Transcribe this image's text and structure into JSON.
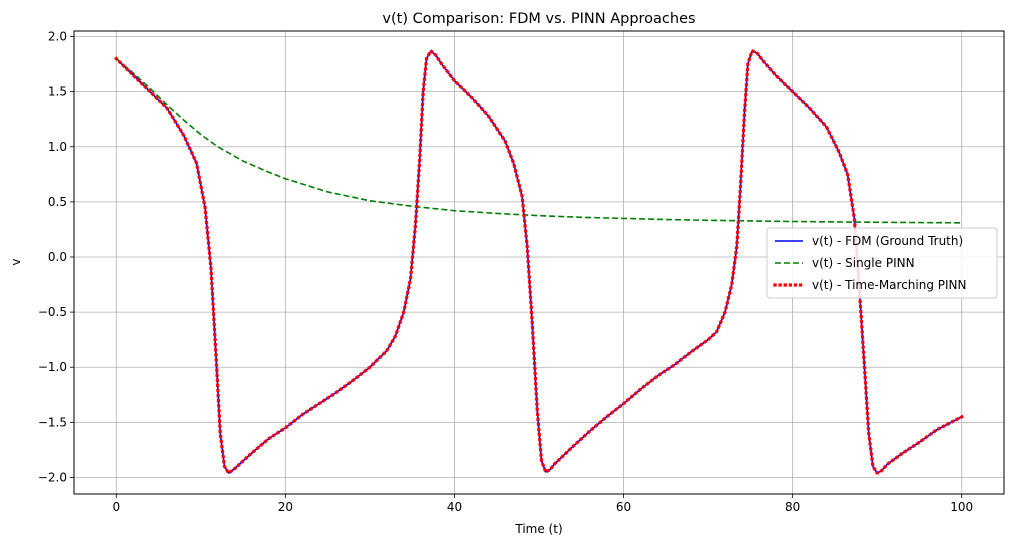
{
  "chart_data": {
    "type": "line",
    "title": "v(t) Comparison: FDM vs. PINN Approaches",
    "xlabel": "Time (t)",
    "ylabel": "v",
    "xlim": [
      -5,
      105
    ],
    "ylim": [
      -2.15,
      2.05
    ],
    "xticks": [
      0,
      20,
      40,
      60,
      80,
      100
    ],
    "xtick_labels": [
      "0",
      "20",
      "40",
      "60",
      "80",
      "100"
    ],
    "yticks": [
      -2.0,
      -1.5,
      -1.0,
      -0.5,
      0.0,
      0.5,
      1.0,
      1.5,
      2.0
    ],
    "ytick_labels": [
      "−2.0",
      "−1.5",
      "−1.0",
      "−0.5",
      "0.0",
      "0.5",
      "1.0",
      "1.5",
      "2.0"
    ],
    "grid": true,
    "legend_position": "center-right",
    "series": [
      {
        "name": "v(t) - FDM (Ground Truth)",
        "color": "#0000ff",
        "style": "solid",
        "x": [
          0,
          2,
          4,
          6,
          8,
          9.5,
          10.5,
          11.2,
          11.8,
          12.3,
          12.8,
          13.3,
          14,
          16,
          18,
          20,
          22,
          24,
          26,
          28,
          30,
          32,
          33,
          34,
          34.8,
          35.4,
          35.9,
          36.3,
          36.7,
          37.2,
          37.8,
          38.5,
          40,
          42,
          44,
          46,
          47,
          48,
          48.6,
          49.2,
          49.8,
          50.3,
          50.8,
          51.3,
          51.8,
          52.5,
          54,
          56,
          58,
          60,
          62,
          64,
          66,
          68,
          70,
          71,
          72,
          72.8,
          73.4,
          73.8,
          74.3,
          74.7,
          75.2,
          75.8,
          76.5,
          78,
          80,
          82,
          84,
          85.5,
          86.5,
          87.3,
          87.9,
          88.5,
          89,
          89.5,
          90,
          90.5,
          91.2,
          93,
          95,
          97,
          100
        ],
        "y": [
          1.8,
          1.65,
          1.5,
          1.35,
          1.1,
          0.85,
          0.45,
          -0.1,
          -0.9,
          -1.6,
          -1.9,
          -1.96,
          -1.92,
          -1.78,
          -1.65,
          -1.55,
          -1.43,
          -1.33,
          -1.23,
          -1.12,
          -1.0,
          -0.85,
          -0.72,
          -0.5,
          -0.2,
          0.3,
          0.9,
          1.5,
          1.8,
          1.87,
          1.83,
          1.75,
          1.6,
          1.45,
          1.28,
          1.05,
          0.85,
          0.55,
          0.1,
          -0.6,
          -1.4,
          -1.85,
          -1.95,
          -1.93,
          -1.88,
          -1.83,
          -1.72,
          -1.58,
          -1.45,
          -1.33,
          -1.2,
          -1.08,
          -0.98,
          -0.86,
          -0.75,
          -0.68,
          -0.5,
          -0.25,
          0.1,
          0.6,
          1.3,
          1.75,
          1.87,
          1.85,
          1.78,
          1.65,
          1.5,
          1.35,
          1.18,
          0.95,
          0.75,
          0.35,
          -0.3,
          -1.0,
          -1.6,
          -1.9,
          -1.96,
          -1.94,
          -1.88,
          -1.78,
          -1.68,
          -1.57,
          -1.45
        ]
      },
      {
        "name": "v(t) - Single PINN",
        "color": "#008000",
        "style": "dashed",
        "x": [
          0,
          2,
          4,
          6,
          8,
          10,
          12,
          15,
          18,
          20,
          25,
          30,
          35,
          40,
          45,
          50,
          55,
          60,
          65,
          70,
          75,
          80,
          85,
          90,
          95,
          100
        ],
        "y": [
          1.8,
          1.67,
          1.53,
          1.38,
          1.24,
          1.11,
          1.0,
          0.87,
          0.77,
          0.71,
          0.59,
          0.51,
          0.46,
          0.42,
          0.395,
          0.375,
          0.36,
          0.35,
          0.34,
          0.333,
          0.327,
          0.322,
          0.318,
          0.315,
          0.312,
          0.31
        ]
      },
      {
        "name": "v(t) - Time-Marching PINN",
        "color": "#ff0000",
        "style": "dotted",
        "x": [
          0,
          2,
          4,
          6,
          8,
          9.5,
          10.5,
          11.2,
          11.8,
          12.3,
          12.8,
          13.3,
          14,
          16,
          18,
          20,
          22,
          24,
          26,
          28,
          30,
          32,
          33,
          34,
          34.8,
          35.4,
          35.9,
          36.3,
          36.7,
          37.2,
          37.8,
          38.5,
          40,
          42,
          44,
          46,
          47,
          48,
          48.6,
          49.2,
          49.8,
          50.3,
          50.8,
          51.3,
          51.8,
          52.5,
          54,
          56,
          58,
          60,
          62,
          64,
          66,
          68,
          70,
          71,
          72,
          72.8,
          73.4,
          73.8,
          74.3,
          74.7,
          75.2,
          75.8,
          76.5,
          78,
          80,
          82,
          84,
          85.5,
          86.5,
          87.3,
          87.9,
          88.5,
          89,
          89.5,
          90,
          90.5,
          91.2,
          93,
          95,
          97,
          100
        ],
        "y": [
          1.8,
          1.65,
          1.5,
          1.35,
          1.1,
          0.85,
          0.45,
          -0.1,
          -0.9,
          -1.6,
          -1.9,
          -1.96,
          -1.92,
          -1.78,
          -1.65,
          -1.55,
          -1.43,
          -1.33,
          -1.23,
          -1.12,
          -1.0,
          -0.85,
          -0.72,
          -0.5,
          -0.2,
          0.3,
          0.9,
          1.5,
          1.8,
          1.87,
          1.83,
          1.75,
          1.6,
          1.45,
          1.28,
          1.05,
          0.85,
          0.55,
          0.1,
          -0.6,
          -1.4,
          -1.85,
          -1.95,
          -1.93,
          -1.88,
          -1.83,
          -1.72,
          -1.58,
          -1.45,
          -1.33,
          -1.2,
          -1.08,
          -0.98,
          -0.86,
          -0.75,
          -0.68,
          -0.5,
          -0.25,
          0.1,
          0.6,
          1.3,
          1.75,
          1.87,
          1.85,
          1.78,
          1.65,
          1.5,
          1.35,
          1.18,
          0.95,
          0.75,
          0.35,
          -0.3,
          -1.0,
          -1.6,
          -1.9,
          -1.96,
          -1.94,
          -1.88,
          -1.78,
          -1.68,
          -1.57,
          -1.45
        ]
      }
    ]
  }
}
